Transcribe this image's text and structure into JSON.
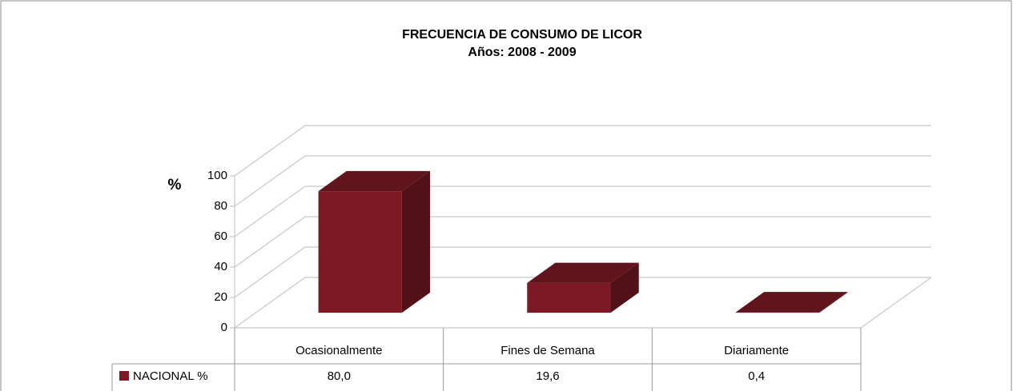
{
  "chart_data": {
    "type": "bar3d",
    "title": "FRECUENCIA DE CONSUMO DE LICOR",
    "subtitle": "Años: 2008 - 2009",
    "y_label": "%",
    "categories": [
      "Ocasionalmente",
      "Fines de Semana",
      "Diariamente"
    ],
    "series": [
      {
        "name": "NACIONAL %",
        "color": "#7b1a24",
        "values": [
          80.0,
          19.6,
          0.4
        ],
        "value_labels": [
          "80,0",
          "19,6",
          "0,4"
        ]
      }
    ],
    "ylim": [
      0,
      100
    ],
    "yticks": [
      0,
      20,
      40,
      60,
      80,
      100
    ],
    "grid": true
  }
}
